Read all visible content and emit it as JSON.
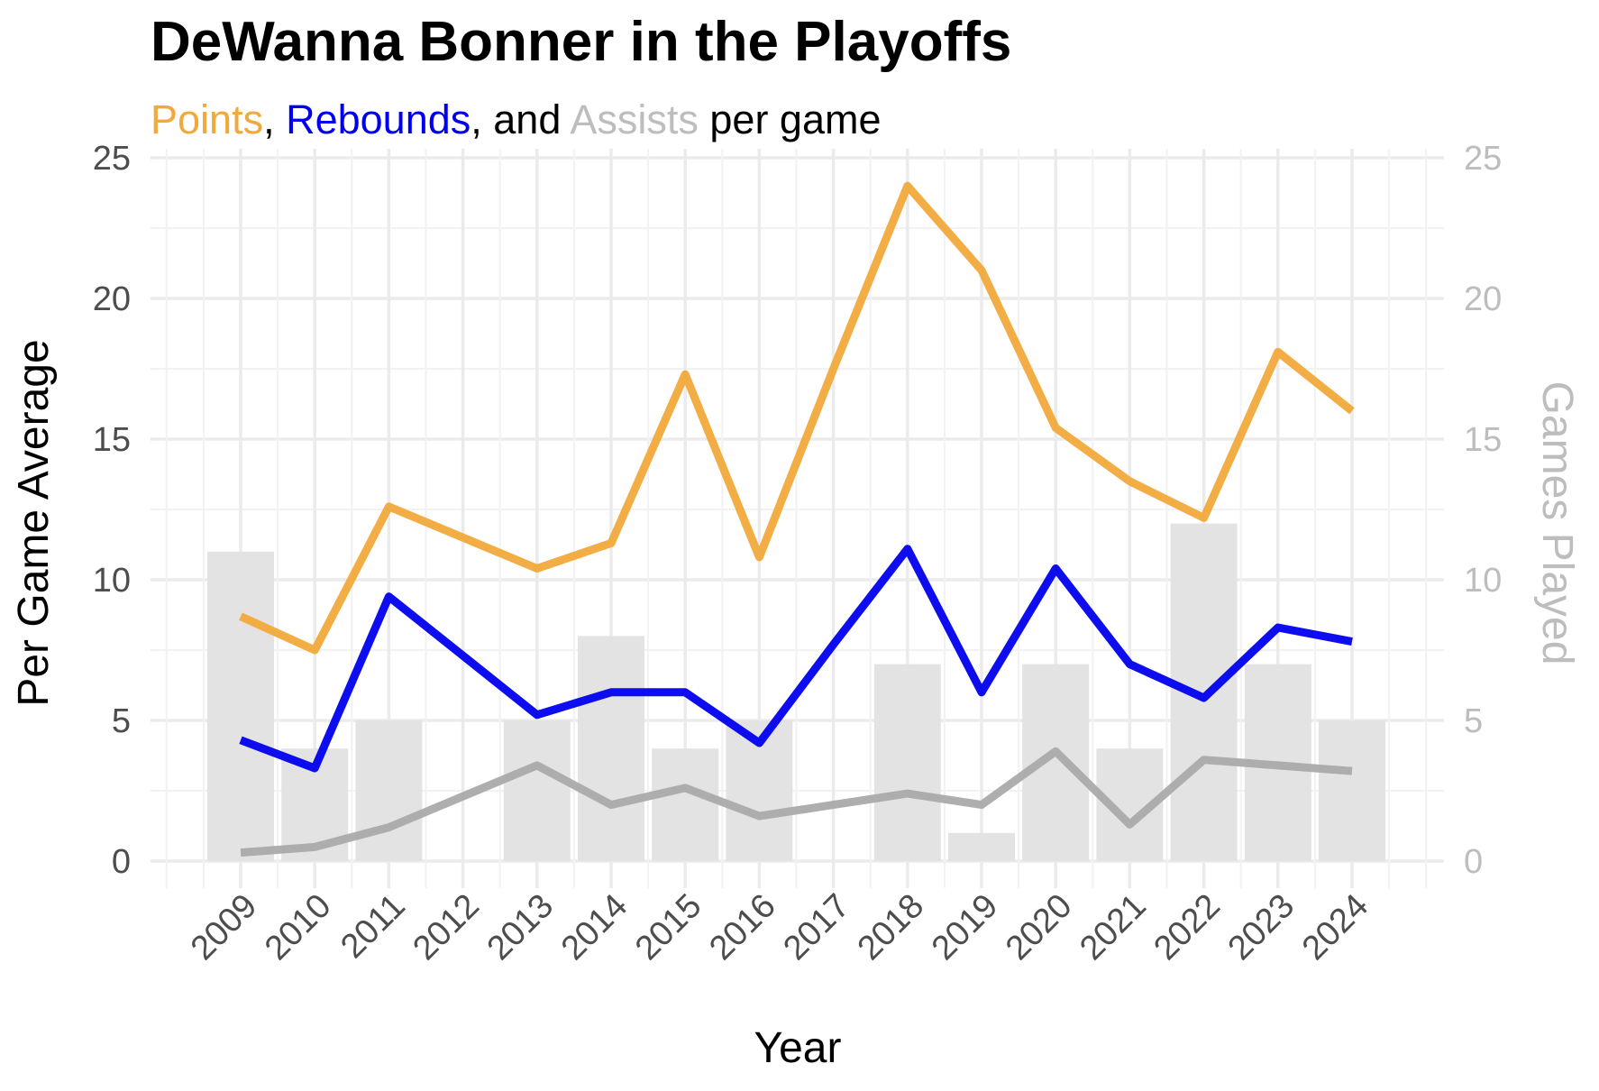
{
  "chart_data": {
    "type": "line",
    "title": "DeWanna Bonner in the Playoffs",
    "subtitle_parts": [
      {
        "text": "Points",
        "color": "#F2A93B"
      },
      {
        "text": ", ",
        "color": "#000000"
      },
      {
        "text": "Rebounds",
        "color": "#0000EE"
      },
      {
        "text": ", and ",
        "color": "#000000"
      },
      {
        "text": "Assists",
        "color": "#BDBDBD"
      },
      {
        "text": " per game",
        "color": "#000000"
      }
    ],
    "xlabel": "Year",
    "ylabel": "Per Game Average",
    "y2label": "Games Played",
    "ylim": [
      0,
      25
    ],
    "y2lim": [
      0,
      25
    ],
    "yticks": [
      "0",
      "5",
      "10",
      "15",
      "20",
      "25"
    ],
    "y2ticks": [
      "0",
      "5",
      "10",
      "15",
      "20",
      "25"
    ],
    "x": [
      "2009",
      "2010",
      "2011",
      "2012",
      "2013",
      "2014",
      "2015",
      "2016",
      "2017",
      "2018",
      "2019",
      "2020",
      "2021",
      "2022",
      "2023",
      "2024"
    ],
    "grid": true,
    "series": [
      {
        "name": "Points",
        "color": "#F2A93B",
        "values": [
          8.7,
          7.5,
          12.6,
          11.5,
          10.4,
          11.3,
          17.3,
          10.8,
          17.5,
          24.0,
          21.0,
          15.4,
          13.5,
          12.2,
          18.1,
          16.0
        ]
      },
      {
        "name": "Rebounds",
        "color": "#0000EE",
        "values": [
          4.3,
          3.3,
          9.4,
          7.3,
          5.2,
          6.0,
          6.0,
          4.2,
          7.7,
          11.1,
          6.0,
          10.4,
          7.0,
          5.8,
          8.3,
          7.8
        ]
      },
      {
        "name": "Assists",
        "color": "#AAAAAA",
        "values": [
          0.3,
          0.5,
          1.2,
          2.3,
          3.4,
          2.0,
          2.6,
          1.6,
          2.0,
          2.4,
          2.0,
          3.9,
          1.3,
          3.6,
          3.4,
          3.2
        ]
      }
    ],
    "games_played": {
      "name": "Games Played",
      "color": "#E3E3E3",
      "values": [
        11,
        4,
        5,
        0,
        5,
        8,
        4,
        5,
        0,
        7,
        1,
        7,
        4,
        12,
        7,
        5
      ]
    }
  }
}
